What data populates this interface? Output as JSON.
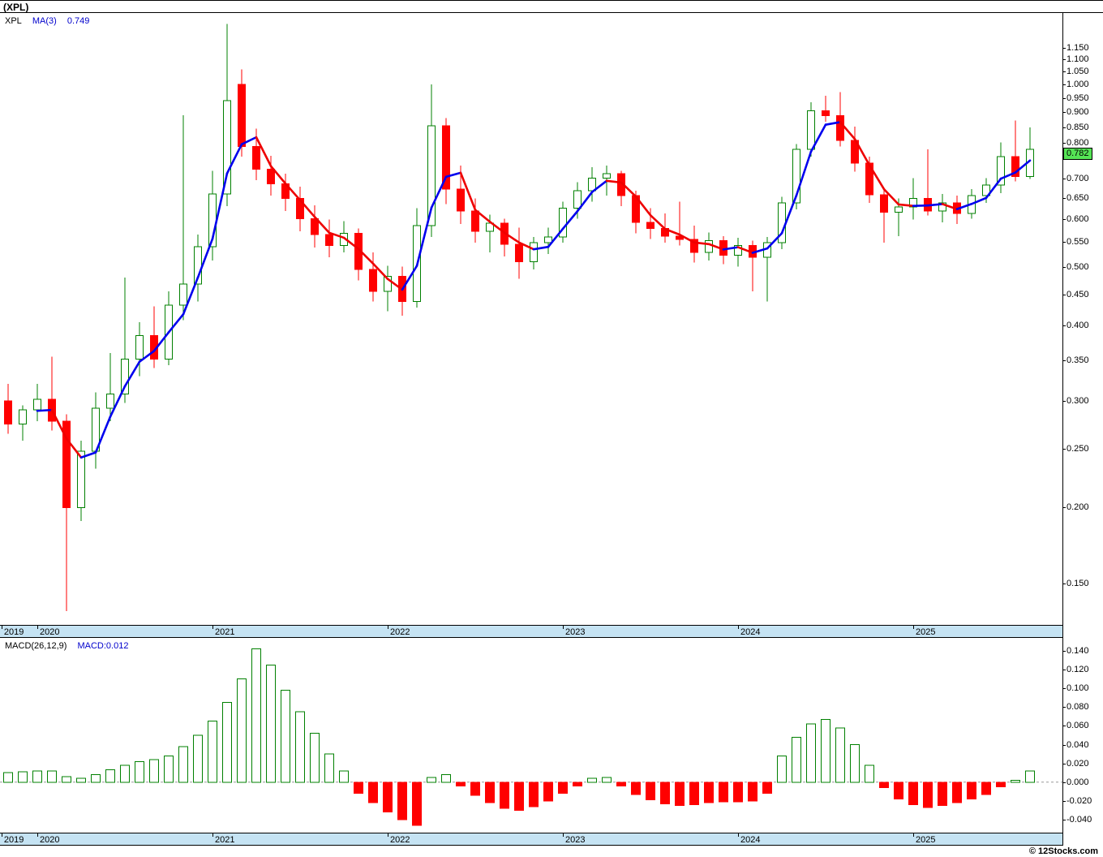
{
  "title": "(XPL)",
  "copyright": "© 12Stocks.com",
  "last_price_badge": "0.782",
  "price_legend": {
    "symbol": "XPL",
    "ma_label": "MA(3)",
    "ma_value": "0.749"
  },
  "macd_legend": {
    "label": "MACD(26,12,9)",
    "value": "MACD:0.012"
  },
  "colors": {
    "up": "#008000",
    "up_fill": "#ffffff",
    "down": "#ff0000",
    "ma_up": "#0000ee",
    "ma_down": "#ee0000",
    "badge_bg": "#55e455",
    "band_bg": "#c5e3f3",
    "zero_line": "#999999",
    "legend_blue": "#0000cc"
  },
  "x_year_ticks": [
    {
      "label": "2019",
      "i": -0.45
    },
    {
      "label": "2020",
      "i": 2
    },
    {
      "label": "2021",
      "i": 14
    },
    {
      "label": "2022",
      "i": 26
    },
    {
      "label": "2023",
      "i": 38
    },
    {
      "label": "2024",
      "i": 50
    },
    {
      "label": "2025",
      "i": 62
    }
  ],
  "chart_data": [
    {
      "type": "candlestick",
      "title": "XPL monthly OHLC with MA(3) overlay",
      "scale": "log",
      "ylim": [
        0.128,
        1.313
      ],
      "y_ticks": [
        1.15,
        1.1,
        1.05,
        1.0,
        0.95,
        0.9,
        0.85,
        0.8,
        0.7,
        0.65,
        0.6,
        0.55,
        0.5,
        0.45,
        0.4,
        0.35,
        0.3,
        0.25,
        0.2,
        0.15
      ],
      "legend_position": "top-left",
      "grid": false,
      "overlay": {
        "name": "MA(3)",
        "period": 3,
        "last_value": 0.749
      },
      "candles": {
        "columns": [
          "month",
          "open",
          "high",
          "low",
          "close"
        ],
        "rows": [
          [
            "2019-11",
            0.3,
            0.32,
            0.265,
            0.275
          ],
          [
            "2019-12",
            0.275,
            0.295,
            0.258,
            0.29
          ],
          [
            "2020-01",
            0.29,
            0.32,
            0.278,
            0.302
          ],
          [
            "2020-02",
            0.302,
            0.355,
            0.268,
            0.278
          ],
          [
            "2020-03",
            0.278,
            0.285,
            0.135,
            0.2
          ],
          [
            "2020-04",
            0.2,
            0.258,
            0.19,
            0.248
          ],
          [
            "2020-05",
            0.248,
            0.31,
            0.232,
            0.292
          ],
          [
            "2020-06",
            0.292,
            0.36,
            0.278,
            0.308
          ],
          [
            "2020-07",
            0.308,
            0.48,
            0.298,
            0.352
          ],
          [
            "2020-08",
            0.352,
            0.405,
            0.33,
            0.385
          ],
          [
            "2020-09",
            0.385,
            0.43,
            0.34,
            0.352
          ],
          [
            "2020-10",
            0.352,
            0.455,
            0.344,
            0.432
          ],
          [
            "2020-11",
            0.432,
            0.89,
            0.408,
            0.468
          ],
          [
            "2020-12",
            0.468,
            0.565,
            0.438,
            0.54
          ],
          [
            "2021-01",
            0.54,
            0.72,
            0.512,
            0.66
          ],
          [
            "2021-02",
            0.66,
            1.26,
            0.63,
            0.94
          ],
          [
            "2021-03",
            1.0,
            1.06,
            0.76,
            0.79
          ],
          [
            "2021-04",
            0.79,
            0.845,
            0.695,
            0.725
          ],
          [
            "2021-05",
            0.725,
            0.762,
            0.655,
            0.685
          ],
          [
            "2021-06",
            0.685,
            0.712,
            0.618,
            0.648
          ],
          [
            "2021-07",
            0.648,
            0.678,
            0.572,
            0.6
          ],
          [
            "2021-08",
            0.6,
            0.632,
            0.538,
            0.565
          ],
          [
            "2021-09",
            0.565,
            0.598,
            0.518,
            0.542
          ],
          [
            "2021-10",
            0.542,
            0.595,
            0.528,
            0.568
          ],
          [
            "2021-11",
            0.568,
            0.578,
            0.475,
            0.495
          ],
          [
            "2021-12",
            0.495,
            0.528,
            0.438,
            0.455
          ],
          [
            "2022-01",
            0.455,
            0.502,
            0.422,
            0.482
          ],
          [
            "2022-02",
            0.482,
            0.5,
            0.415,
            0.438
          ],
          [
            "2022-03",
            0.438,
            0.625,
            0.428,
            0.585
          ],
          [
            "2022-04",
            0.585,
            1.0,
            0.56,
            0.855
          ],
          [
            "2022-05",
            0.855,
            0.88,
            0.635,
            0.672
          ],
          [
            "2022-06",
            0.672,
            0.735,
            0.588,
            0.618
          ],
          [
            "2022-07",
            0.618,
            0.648,
            0.548,
            0.572
          ],
          [
            "2022-08",
            0.572,
            0.61,
            0.528,
            0.59
          ],
          [
            "2022-09",
            0.59,
            0.6,
            0.52,
            0.545
          ],
          [
            "2022-10",
            0.545,
            0.58,
            0.478,
            0.51
          ],
          [
            "2022-11",
            0.51,
            0.56,
            0.495,
            0.548
          ],
          [
            "2022-12",
            0.548,
            0.58,
            0.525,
            0.56
          ],
          [
            "2023-01",
            0.56,
            0.64,
            0.548,
            0.625
          ],
          [
            "2023-02",
            0.625,
            0.69,
            0.6,
            0.668
          ],
          [
            "2023-03",
            0.668,
            0.73,
            0.64,
            0.7
          ],
          [
            "2023-04",
            0.7,
            0.735,
            0.655,
            0.712
          ],
          [
            "2023-05",
            0.712,
            0.72,
            0.63,
            0.655
          ],
          [
            "2023-06",
            0.655,
            0.668,
            0.568,
            0.592
          ],
          [
            "2023-07",
            0.592,
            0.625,
            0.556,
            0.578
          ],
          [
            "2023-08",
            0.578,
            0.612,
            0.548,
            0.562
          ],
          [
            "2023-09",
            0.562,
            0.64,
            0.542,
            0.555
          ],
          [
            "2023-10",
            0.555,
            0.585,
            0.508,
            0.528
          ],
          [
            "2023-11",
            0.528,
            0.57,
            0.512,
            0.552
          ],
          [
            "2023-12",
            0.552,
            0.562,
            0.505,
            0.522
          ],
          [
            "2024-01",
            0.522,
            0.558,
            0.5,
            0.542
          ],
          [
            "2024-02",
            0.542,
            0.552,
            0.455,
            0.518
          ],
          [
            "2024-03",
            0.518,
            0.56,
            0.438,
            0.548
          ],
          [
            "2024-04",
            0.548,
            0.652,
            0.535,
            0.638
          ],
          [
            "2024-05",
            0.638,
            0.798,
            0.622,
            0.782
          ],
          [
            "2024-06",
            0.782,
            0.935,
            0.76,
            0.905
          ],
          [
            "2024-07",
            0.905,
            0.958,
            0.868,
            0.888
          ],
          [
            "2024-08",
            0.888,
            0.972,
            0.79,
            0.808
          ],
          [
            "2024-09",
            0.808,
            0.852,
            0.718,
            0.742
          ],
          [
            "2024-10",
            0.742,
            0.76,
            0.638,
            0.658
          ],
          [
            "2024-11",
            0.658,
            0.672,
            0.548,
            0.615
          ],
          [
            "2024-12",
            0.615,
            0.648,
            0.562,
            0.628
          ],
          [
            "2025-01",
            0.628,
            0.7,
            0.598,
            0.648
          ],
          [
            "2025-02",
            0.648,
            0.782,
            0.608,
            0.618
          ],
          [
            "2025-03",
            0.618,
            0.66,
            0.592,
            0.638
          ],
          [
            "2025-04",
            0.638,
            0.655,
            0.588,
            0.612
          ],
          [
            "2025-05",
            0.612,
            0.672,
            0.6,
            0.655
          ],
          [
            "2025-06",
            0.655,
            0.7,
            0.638,
            0.682
          ],
          [
            "2025-07",
            0.682,
            0.802,
            0.662,
            0.76
          ],
          [
            "2025-08",
            0.76,
            0.872,
            0.692,
            0.705
          ],
          [
            "2025-09",
            0.705,
            0.85,
            0.698,
            0.782
          ]
        ]
      }
    },
    {
      "type": "bar",
      "title": "MACD(26,12,9) histogram",
      "scale": "linear",
      "x_alignment": "same monthly axis as price panel",
      "ylim": [
        -0.053,
        0.153
      ],
      "y_ticks": [
        0.14,
        0.12,
        0.1,
        0.08,
        0.06,
        0.04,
        0.02,
        0.0,
        -0.02,
        -0.04
      ],
      "last_value": 0.012,
      "grid": false,
      "values": [
        0.01,
        0.011,
        0.012,
        0.012,
        0.006,
        0.004,
        0.008,
        0.013,
        0.018,
        0.022,
        0.024,
        0.028,
        0.038,
        0.05,
        0.065,
        0.085,
        0.11,
        0.142,
        0.125,
        0.098,
        0.075,
        0.052,
        0.03,
        0.012,
        -0.012,
        -0.022,
        -0.032,
        -0.04,
        -0.046,
        0.005,
        0.008,
        -0.004,
        -0.014,
        -0.022,
        -0.028,
        -0.03,
        -0.026,
        -0.02,
        -0.012,
        -0.004,
        0.004,
        0.005,
        -0.004,
        -0.013,
        -0.019,
        -0.023,
        -0.025,
        -0.024,
        -0.022,
        -0.021,
        -0.021,
        -0.02,
        -0.012,
        0.028,
        0.048,
        0.062,
        0.067,
        0.058,
        0.04,
        0.018,
        -0.006,
        -0.018,
        -0.024,
        -0.027,
        -0.025,
        -0.022,
        -0.018,
        -0.013,
        -0.005,
        0.002,
        0.012
      ]
    }
  ]
}
